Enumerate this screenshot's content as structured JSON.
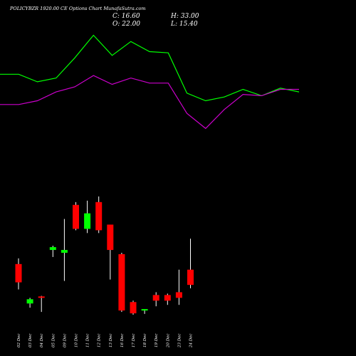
{
  "chart_data": {
    "type": "candlestick",
    "title": "POLICYBZR 1920.00 CE Options Chart MunafaSutra.com",
    "summary": {
      "C": "16.60",
      "O": "22.00",
      "H": "33.00",
      "L": "15.40"
    },
    "dates": [
      "02 Dec",
      "03 Dec",
      "04 Dec",
      "05 Dec",
      "09 Dec",
      "10 Dec",
      "11 Dec",
      "12 Dec",
      "13 Dec",
      "16 Dec",
      "17 Dec",
      "18 Dec",
      "19 Dec",
      "20 Dec",
      "23 Dec",
      "24 Dec"
    ],
    "ohlc": [
      [
        24.0,
        26.0,
        15.0,
        17.5
      ],
      [
        10.0,
        12.0,
        8.5,
        11.5
      ],
      [
        12.5,
        12.7,
        7.0,
        12.0
      ],
      [
        29.0,
        30.5,
        26.5,
        30.0
      ],
      [
        28.0,
        40.0,
        18.0,
        29.0
      ],
      [
        45.0,
        46.0,
        36.0,
        36.5
      ],
      [
        36.5,
        46.5,
        35.0,
        42.0
      ],
      [
        46.0,
        48.0,
        35.0,
        36.0
      ],
      [
        38.0,
        38.0,
        18.5,
        29.0
      ],
      [
        27.5,
        28.0,
        7.0,
        7.5
      ],
      [
        10.5,
        11.0,
        6.0,
        6.5
      ],
      [
        7.5,
        8.0,
        6.3,
        8.0
      ],
      [
        13.0,
        14.0,
        9.0,
        11.0
      ],
      [
        13.0,
        13.5,
        9.5,
        11.0
      ],
      [
        14.0,
        22.0,
        9.5,
        12.0
      ],
      [
        22.0,
        33.0,
        15.4,
        16.6
      ]
    ],
    "line_series": [
      {
        "color": "#00ff00",
        "values": [
          88,
          88,
          82,
          85,
          101,
          119,
          103,
          114,
          106,
          105,
          73,
          67,
          70,
          76,
          71,
          77,
          74
        ]
      },
      {
        "color": "#cc00cc",
        "values": [
          64,
          64,
          67,
          74,
          78,
          87,
          80,
          85,
          81,
          81,
          57,
          45,
          60,
          72,
          71,
          76,
          76
        ]
      }
    ],
    "colors": {
      "up": "#00ff00",
      "down": "#ff0000",
      "background": "#000000",
      "text": "#ffffff"
    },
    "grid": false
  }
}
